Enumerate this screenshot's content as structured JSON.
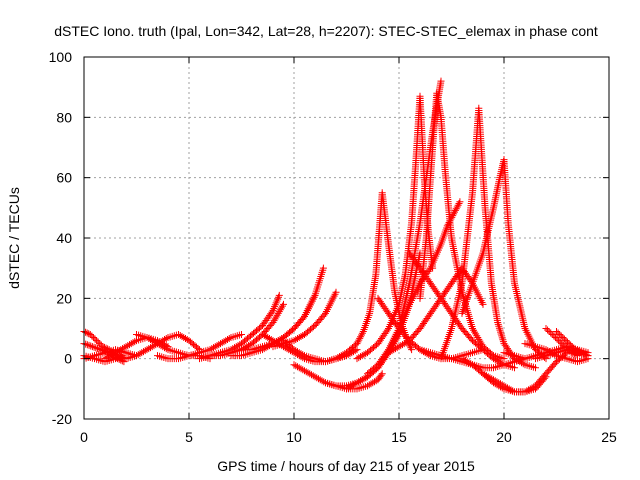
{
  "chart_data": {
    "type": "scatter",
    "title": "dSTEC Iono. truth (Ipal, Lon=342, Lat=28, h=2207): STEC-STEC_elemax in phase cont",
    "xlabel": "GPS time / hours of day 215 of year 2015",
    "ylabel": "dSTEC  / TECUs",
    "xlim": [
      0,
      25
    ],
    "ylim": [
      -20,
      100
    ],
    "xticks": [
      0,
      5,
      10,
      15,
      20,
      25
    ],
    "yticks": [
      -20,
      0,
      20,
      40,
      60,
      80,
      100
    ],
    "grid": true,
    "marker": "plus",
    "color": "#ff0000",
    "series": [
      {
        "x": [
          0.0,
          0.3,
          0.6,
          0.9,
          1.2,
          1.6,
          2.0
        ],
        "y": [
          9,
          8,
          6,
          4,
          3,
          1,
          0
        ]
      },
      {
        "x": [
          0.0,
          0.4,
          0.8,
          1.2,
          1.6,
          1.9
        ],
        "y": [
          5,
          4,
          3,
          2,
          0,
          -1
        ]
      },
      {
        "x": [
          0.0,
          0.5,
          1.0,
          1.5,
          2.0,
          2.5
        ],
        "y": [
          0,
          1,
          2,
          3,
          2,
          1
        ]
      },
      {
        "x": [
          0.0,
          0.5,
          1.0,
          1.5,
          1.8
        ],
        "y": [
          1,
          0,
          -1,
          0,
          1
        ]
      },
      {
        "x": [
          1.0,
          1.5,
          2.0,
          2.5,
          3.0,
          3.5,
          4.0
        ],
        "y": [
          0,
          2,
          4,
          6,
          7,
          6,
          4
        ]
      },
      {
        "x": [
          2.0,
          2.5,
          3.0,
          3.5,
          4.0,
          4.5,
          5.0,
          5.5
        ],
        "y": [
          0,
          1,
          3,
          5,
          7,
          8,
          6,
          3
        ]
      },
      {
        "x": [
          2.5,
          3.0,
          3.5,
          4.0,
          4.5,
          5.0,
          5.5,
          6.0
        ],
        "y": [
          8,
          7,
          5,
          3,
          2,
          1,
          1,
          0
        ]
      },
      {
        "x": [
          3.5,
          4.0,
          4.5,
          5.0,
          5.5,
          6.0,
          6.5,
          7.0,
          7.5
        ],
        "y": [
          1,
          0,
          0,
          1,
          2,
          3,
          5,
          7,
          8
        ]
      },
      {
        "x": [
          5.5,
          6.0,
          6.5,
          7.0,
          7.5,
          8.0,
          8.5,
          9.0,
          9.3
        ],
        "y": [
          0,
          1,
          2,
          3,
          5,
          8,
          11,
          16,
          21
        ]
      },
      {
        "x": [
          6.0,
          6.5,
          7.0,
          7.5,
          8.0,
          8.5,
          9.0,
          9.5
        ],
        "y": [
          1,
          1,
          2,
          3,
          5,
          8,
          12,
          18
        ]
      },
      {
        "x": [
          7.0,
          7.5,
          8.0,
          8.5,
          9.0,
          9.5,
          10.0,
          10.5,
          11.0,
          11.4
        ],
        "y": [
          1,
          1,
          2,
          3,
          5,
          7,
          10,
          14,
          21,
          30
        ]
      },
      {
        "x": [
          7.5,
          8.0,
          8.5,
          9.0,
          9.5,
          10.0,
          10.5,
          11.0
        ],
        "y": [
          3,
          3,
          4,
          5,
          7,
          10,
          14,
          21
        ]
      },
      {
        "x": [
          9.0,
          9.5,
          10.0,
          10.5,
          11.0,
          11.5,
          12.0
        ],
        "y": [
          4,
          5,
          6,
          8,
          11,
          15,
          22
        ]
      },
      {
        "x": [
          8.5,
          9.0,
          9.5,
          10.0,
          10.5,
          11.0,
          11.5,
          12.0,
          12.5,
          13.0
        ],
        "y": [
          8,
          6,
          4,
          2,
          0,
          -1,
          -1,
          0,
          1,
          3
        ]
      },
      {
        "x": [
          9.5,
          10.0,
          10.5,
          11.0,
          11.5,
          12.0,
          12.5
        ],
        "y": [
          6,
          3,
          1,
          0,
          -1,
          0,
          1
        ]
      },
      {
        "x": [
          10.0,
          10.5,
          11.0,
          11.5,
          12.0,
          12.5,
          13.0,
          13.5,
          14.0,
          14.2
        ],
        "y": [
          -2,
          -4,
          -6,
          -8,
          -9,
          -10,
          -10,
          -9,
          -7,
          -5
        ]
      },
      {
        "x": [
          11.5,
          12.0,
          12.5,
          13.0,
          13.5,
          14.0,
          14.5,
          15.0,
          15.5,
          16.0
        ],
        "y": [
          -8,
          -9,
          -9,
          -8,
          -6,
          -3,
          2,
          8,
          18,
          35
        ]
      },
      {
        "x": [
          12.0,
          12.5,
          13.0,
          13.3,
          13.6,
          13.9,
          14.2,
          14.5,
          14.8,
          15.1,
          15.4,
          15.6
        ],
        "y": [
          0,
          2,
          5,
          9,
          15,
          28,
          55,
          38,
          22,
          12,
          6,
          3
        ]
      },
      {
        "x": [
          12.5,
          13.0,
          13.5,
          14.0,
          14.5,
          15.0,
          15.5,
          16.0,
          16.3,
          16.6,
          16.9,
          17.0
        ],
        "y": [
          -10,
          -8,
          -6,
          -3,
          2,
          10,
          25,
          45,
          60,
          75,
          88,
          92
        ]
      },
      {
        "x": [
          13.0,
          13.5,
          14.0,
          14.5,
          15.0,
          15.3,
          15.6,
          15.8,
          16.0,
          16.2,
          16.4,
          16.6
        ],
        "y": [
          0,
          2,
          5,
          10,
          18,
          28,
          45,
          65,
          87,
          60,
          42,
          30
        ]
      },
      {
        "x": [
          13.5,
          14.0,
          14.5,
          15.0,
          15.5,
          16.0,
          16.5,
          17.0,
          17.3,
          17.6,
          17.9
        ],
        "y": [
          -5,
          -2,
          3,
          10,
          18,
          25,
          30,
          38,
          44,
          48,
          52
        ]
      },
      {
        "x": [
          14.5,
          15.0,
          15.5,
          16.0,
          16.5,
          17.0,
          17.5,
          18.0,
          18.5,
          19.0
        ],
        "y": [
          2,
          4,
          6,
          10,
          15,
          20,
          25,
          30,
          25,
          18
        ]
      },
      {
        "x": [
          15.5,
          16.0,
          16.5,
          17.0,
          17.5,
          18.0,
          18.5,
          19.0,
          19.5,
          20.0,
          20.5
        ],
        "y": [
          35,
          30,
          25,
          20,
          15,
          10,
          6,
          3,
          0,
          -2,
          -3
        ]
      },
      {
        "x": [
          16.0,
          16.3,
          16.6,
          16.8,
          17.0,
          17.2,
          17.5,
          18.0,
          18.5,
          19.0,
          19.5,
          20.0
        ],
        "y": [
          20,
          40,
          70,
          88,
          80,
          62,
          40,
          22,
          10,
          4,
          1,
          0
        ]
      },
      {
        "x": [
          14.0,
          14.5,
          15.0,
          15.5,
          16.0,
          16.5,
          17.0,
          17.5,
          18.0,
          18.5,
          19.0
        ],
        "y": [
          20,
          15,
          10,
          6,
          3,
          1,
          0,
          0,
          1,
          2,
          3
        ]
      },
      {
        "x": [
          16.0,
          16.5,
          17.0,
          17.5,
          18.0,
          18.5,
          19.0,
          19.5,
          20.0,
          20.5,
          21.0
        ],
        "y": [
          3,
          2,
          1,
          0,
          -1,
          -2,
          -3,
          -3,
          -2,
          -1,
          0
        ]
      },
      {
        "x": [
          17.0,
          17.5,
          18.0,
          18.5,
          18.8,
          19.1,
          19.4,
          19.7,
          20.0,
          20.5,
          21.0,
          21.5
        ],
        "y": [
          0,
          10,
          25,
          55,
          83,
          50,
          25,
          12,
          5,
          0,
          -2,
          -3
        ]
      },
      {
        "x": [
          18.0,
          18.5,
          19.0,
          19.5,
          19.8,
          20.0,
          20.2,
          20.5,
          21.0,
          21.5,
          22.0
        ],
        "y": [
          15,
          25,
          35,
          50,
          60,
          66,
          45,
          25,
          10,
          3,
          0
        ]
      },
      {
        "x": [
          18.0,
          18.5,
          19.0,
          19.5,
          20.0,
          20.5,
          21.0,
          21.5,
          22.0
        ],
        "y": [
          0,
          -2,
          -5,
          -8,
          -10,
          -11,
          -11,
          -10,
          -6
        ]
      },
      {
        "x": [
          19.0,
          19.5,
          20.0,
          20.5,
          21.0,
          21.5,
          22.0,
          22.5,
          23.0
        ],
        "y": [
          -5,
          -7,
          -9,
          -11,
          -11,
          -9,
          -5,
          -1,
          2
        ]
      },
      {
        "x": [
          20.0,
          20.5,
          21.0,
          21.5,
          22.0,
          22.5,
          23.0,
          23.5,
          24.0
        ],
        "y": [
          2,
          1,
          0,
          1,
          2,
          3,
          4,
          3,
          2
        ]
      },
      {
        "x": [
          21.0,
          21.5,
          22.0,
          22.5,
          23.0,
          23.5,
          24.0
        ],
        "y": [
          5,
          4,
          3,
          1,
          0,
          -1,
          0
        ]
      },
      {
        "x": [
          22.0,
          22.3,
          22.6,
          22.9,
          23.2,
          23.5
        ],
        "y": [
          10,
          8,
          6,
          4,
          2,
          1
        ]
      },
      {
        "x": [
          22.5,
          22.8,
          23.1,
          23.4,
          23.7,
          24.0
        ],
        "y": [
          9,
          7,
          5,
          3,
          2,
          1
        ]
      },
      {
        "x": [
          21.5,
          22.0,
          22.5,
          23.0,
          23.5,
          24.0
        ],
        "y": [
          0,
          1,
          2,
          3,
          2,
          1
        ]
      }
    ]
  }
}
